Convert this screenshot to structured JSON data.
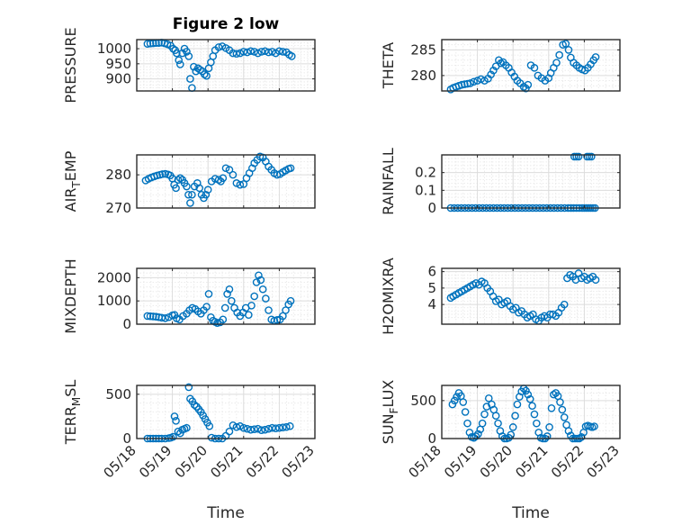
{
  "figure_title": "Figure 2 low",
  "colors": {
    "marker": "#0072bd",
    "axes": "#262626",
    "grid": "#dcdcdc"
  },
  "chart_data": [
    {
      "type": "scatter",
      "title": "Figure 2 low",
      "ylabel": "PRESSURE",
      "ylim": [
        860,
        1030
      ],
      "yticks": [
        900,
        950,
        1000
      ],
      "xlim": [
        0,
        5
      ],
      "xticks": [
        0,
        1,
        2,
        3,
        4,
        5
      ],
      "xticklabels": [
        "05/18",
        "05/19",
        "05/20",
        "05/21",
        "05/22",
        "05/23"
      ],
      "show_x_tick_labels": false,
      "xlabel": "",
      "grid": true,
      "x": [
        0.3,
        0.38,
        0.46,
        0.54,
        0.62,
        0.7,
        0.78,
        0.86,
        0.95,
        1.02,
        1.08,
        1.12,
        1.18,
        1.22,
        1.28,
        1.34,
        1.4,
        1.46,
        1.5,
        1.55,
        1.6,
        1.66,
        1.72,
        1.78,
        1.84,
        1.9,
        1.96,
        2.02,
        2.08,
        2.14,
        2.2,
        2.3,
        2.4,
        2.5,
        2.6,
        2.7,
        2.8,
        2.9,
        3.0,
        3.1,
        3.2,
        3.3,
        3.4,
        3.5,
        3.6,
        3.7,
        3.8,
        3.9,
        4.0,
        4.1,
        4.2,
        4.28,
        4.35
      ],
      "y": [
        1016,
        1017,
        1018,
        1019,
        1019,
        1020,
        1018,
        1015,
        1010,
        1000,
        995,
        985,
        962,
        948,
        985,
        1000,
        990,
        975,
        900,
        870,
        940,
        925,
        935,
        930,
        925,
        915,
        910,
        935,
        955,
        975,
        995,
        1005,
        1008,
        1002,
        995,
        985,
        983,
        985,
        990,
        988,
        992,
        990,
        985,
        990,
        992,
        988,
        990,
        985,
        992,
        990,
        988,
        980,
        975
      ]
    },
    {
      "type": "scatter",
      "ylabel": "THETA",
      "ylim": [
        277,
        287
      ],
      "yticks": [
        280,
        285
      ],
      "xlim": [
        0,
        5
      ],
      "xticks": [
        0,
        1,
        2,
        3,
        4,
        5
      ],
      "xticklabels": [
        "05/18",
        "05/19",
        "05/20",
        "05/21",
        "05/22",
        "05/23"
      ],
      "show_x_tick_labels": false,
      "xlabel": "",
      "grid": true,
      "x": [
        0.25,
        0.32,
        0.4,
        0.48,
        0.56,
        0.64,
        0.72,
        0.8,
        0.9,
        1.0,
        1.1,
        1.2,
        1.3,
        1.38,
        1.45,
        1.52,
        1.6,
        1.66,
        1.72,
        1.8,
        1.88,
        1.96,
        2.04,
        2.12,
        2.2,
        2.3,
        2.36,
        2.42,
        2.5,
        2.6,
        2.7,
        2.8,
        2.9,
        3.0,
        3.06,
        3.14,
        3.22,
        3.3,
        3.4,
        3.48,
        3.56,
        3.62,
        3.7,
        3.78,
        3.86,
        3.94,
        4.02,
        4.1,
        4.18,
        4.26,
        4.32
      ],
      "y": [
        277.3,
        277.6,
        277.8,
        278.0,
        278.2,
        278.3,
        278.4,
        278.5,
        278.8,
        279.0,
        279.3,
        279.0,
        279.4,
        280.2,
        281.0,
        281.8,
        283.0,
        282.4,
        282.6,
        282.0,
        281.5,
        280.6,
        279.8,
        279.0,
        278.5,
        277.8,
        277.5,
        278.2,
        282.0,
        281.5,
        280.0,
        279.5,
        279.0,
        279.5,
        280.5,
        281.5,
        282.5,
        284.0,
        286.0,
        286.2,
        285.0,
        283.5,
        282.5,
        282.0,
        281.5,
        281.2,
        281.0,
        281.5,
        282.2,
        283.0,
        283.6
      ]
    },
    {
      "type": "scatter",
      "ylabel": "AIR_TEMP",
      "ylabel_main": "AIR",
      "ylabel_sub": "T",
      "ylabel_rest": "EMP",
      "ylim": [
        270,
        286
      ],
      "yticks": [
        270,
        280
      ],
      "xlim": [
        0,
        5
      ],
      "xticks": [
        0,
        1,
        2,
        3,
        4,
        5
      ],
      "xticklabels": [
        "05/18",
        "05/19",
        "05/20",
        "05/21",
        "05/22",
        "05/23"
      ],
      "show_x_tick_labels": false,
      "xlabel": "",
      "grid": true,
      "x": [
        0.25,
        0.33,
        0.41,
        0.49,
        0.57,
        0.65,
        0.72,
        0.8,
        0.88,
        0.94,
        1.0,
        1.05,
        1.1,
        1.16,
        1.22,
        1.28,
        1.34,
        1.4,
        1.45,
        1.5,
        1.55,
        1.62,
        1.7,
        1.76,
        1.82,
        1.88,
        1.94,
        2.0,
        2.1,
        2.2,
        2.3,
        2.36,
        2.42,
        2.5,
        2.6,
        2.7,
        2.8,
        2.9,
        3.0,
        3.08,
        3.16,
        3.24,
        3.3,
        3.38,
        3.46,
        3.54,
        3.62,
        3.7,
        3.78,
        3.86,
        3.94,
        4.02,
        4.1,
        4.18,
        4.26,
        4.32
      ],
      "y": [
        278.3,
        278.8,
        279.2,
        279.5,
        279.8,
        280.0,
        280.2,
        280.3,
        280.1,
        279.8,
        278.9,
        277.0,
        276.0,
        278.5,
        279.0,
        278.5,
        277.5,
        276.5,
        274.0,
        271.5,
        274.0,
        276.5,
        277.5,
        276.0,
        274.0,
        273.0,
        274.0,
        275.5,
        278.0,
        278.8,
        278.5,
        278.0,
        279.0,
        282.0,
        281.5,
        280.0,
        277.5,
        277.0,
        277.2,
        279.0,
        280.5,
        282.0,
        283.5,
        284.5,
        285.5,
        285.2,
        284.0,
        282.5,
        281.5,
        280.5,
        280.0,
        280.2,
        280.8,
        281.3,
        281.8,
        282.0
      ]
    },
    {
      "type": "scatter",
      "ylabel": "RAINFALL",
      "ylim": [
        0,
        0.3
      ],
      "yticks": [
        0,
        0.1,
        0.2
      ],
      "yticklabels": [
        "0",
        "0.1",
        "0.2"
      ],
      "xlim": [
        0,
        5
      ],
      "xticks": [
        0,
        1,
        2,
        3,
        4,
        5
      ],
      "xticklabels": [
        "05/18",
        "05/19",
        "05/20",
        "05/21",
        "05/22",
        "05/23"
      ],
      "show_x_tick_labels": false,
      "xlabel": "",
      "grid": true,
      "x": [
        0.25,
        0.35,
        0.45,
        0.55,
        0.65,
        0.75,
        0.85,
        0.95,
        1.05,
        1.15,
        1.25,
        1.35,
        1.45,
        1.55,
        1.65,
        1.75,
        1.85,
        1.95,
        2.05,
        2.15,
        2.25,
        2.35,
        2.45,
        2.55,
        2.65,
        2.75,
        2.85,
        2.95,
        3.05,
        3.15,
        3.25,
        3.35,
        3.45,
        3.55,
        3.62,
        3.7,
        3.78,
        3.86,
        3.94,
        4.0,
        4.06,
        4.12,
        4.18,
        4.24,
        4.3,
        3.72,
        3.78,
        3.84,
        4.08,
        4.14,
        4.2
      ],
      "y": [
        0,
        0,
        0,
        0,
        0,
        0,
        0,
        0,
        0,
        0,
        0,
        0,
        0,
        0,
        0,
        0,
        0,
        0,
        0,
        0,
        0,
        0,
        0,
        0,
        0,
        0,
        0,
        0,
        0,
        0,
        0,
        0,
        0,
        0,
        0,
        0,
        0,
        0,
        0,
        0,
        0,
        0,
        0,
        0,
        0,
        0.29,
        0.29,
        0.29,
        0.29,
        0.29,
        0.29
      ]
    },
    {
      "type": "scatter",
      "ylabel": "MIXDEPTH",
      "ylim": [
        0,
        2400
      ],
      "yticks": [
        0,
        1000,
        2000
      ],
      "xlim": [
        0,
        5
      ],
      "xticks": [
        0,
        1,
        2,
        3,
        4,
        5
      ],
      "xticklabels": [
        "05/18",
        "05/19",
        "05/20",
        "05/21",
        "05/22",
        "05/23"
      ],
      "show_x_tick_labels": false,
      "xlabel": "",
      "grid": true,
      "x": [
        0.3,
        0.38,
        0.46,
        0.54,
        0.62,
        0.7,
        0.8,
        0.9,
        1.0,
        1.06,
        1.12,
        1.2,
        1.3,
        1.4,
        1.48,
        1.56,
        1.64,
        1.72,
        1.8,
        1.88,
        1.96,
        2.02,
        2.08,
        2.14,
        2.2,
        2.26,
        2.34,
        2.42,
        2.48,
        2.54,
        2.6,
        2.66,
        2.74,
        2.82,
        2.9,
        2.98,
        3.06,
        3.14,
        3.22,
        3.3,
        3.36,
        3.42,
        3.48,
        3.54,
        3.62,
        3.7,
        3.78,
        3.86,
        3.94,
        4.02,
        4.1,
        4.18,
        4.26,
        4.32
      ],
      "y": [
        350,
        340,
        330,
        320,
        300,
        280,
        260,
        300,
        380,
        400,
        250,
        200,
        350,
        450,
        600,
        700,
        650,
        550,
        450,
        600,
        750,
        1300,
        300,
        150,
        100,
        50,
        80,
        200,
        700,
        1300,
        1500,
        1000,
        700,
        500,
        350,
        500,
        700,
        400,
        800,
        1200,
        1800,
        2100,
        1900,
        1500,
        1100,
        600,
        200,
        150,
        180,
        200,
        350,
        600,
        850,
        1000
      ]
    },
    {
      "type": "scatter",
      "ylabel": "H2OMIXRA",
      "ylim": [
        2.8,
        6.2
      ],
      "yticks": [
        4,
        5,
        6
      ],
      "xlim": [
        0,
        5
      ],
      "xticks": [
        0,
        1,
        2,
        3,
        4,
        5
      ],
      "xticklabels": [
        "05/18",
        "05/19",
        "05/20",
        "05/21",
        "05/22",
        "05/23"
      ],
      "show_x_tick_labels": false,
      "xlabel": "",
      "grid": true,
      "x": [
        0.25,
        0.32,
        0.4,
        0.48,
        0.56,
        0.64,
        0.72,
        0.8,
        0.88,
        0.96,
        1.04,
        1.12,
        1.2,
        1.28,
        1.36,
        1.44,
        1.52,
        1.6,
        1.68,
        1.76,
        1.84,
        1.92,
        2.0,
        2.08,
        2.16,
        2.24,
        2.32,
        2.4,
        2.48,
        2.56,
        2.64,
        2.72,
        2.8,
        2.88,
        2.96,
        3.04,
        3.12,
        3.2,
        3.28,
        3.36,
        3.44,
        3.52,
        3.6,
        3.68,
        3.76,
        3.84,
        3.92,
        4.0,
        4.08,
        4.16,
        4.24,
        4.32
      ],
      "y": [
        4.4,
        4.5,
        4.6,
        4.7,
        4.8,
        4.9,
        5.0,
        5.1,
        5.2,
        5.3,
        5.2,
        5.4,
        5.3,
        5.0,
        4.8,
        4.5,
        4.2,
        4.3,
        4.0,
        4.1,
        4.2,
        3.9,
        3.7,
        3.8,
        3.5,
        3.6,
        3.4,
        3.2,
        3.3,
        3.4,
        3.1,
        3.0,
        3.2,
        3.3,
        3.2,
        3.4,
        3.4,
        3.3,
        3.5,
        3.8,
        4.0,
        5.6,
        5.8,
        5.7,
        5.5,
        5.9,
        5.6,
        5.7,
        5.5,
        5.6,
        5.7,
        5.5
      ]
    },
    {
      "type": "scatter",
      "ylabel": "TERR_MSL",
      "ylabel_main": "TERR",
      "ylabel_sub": "M",
      "ylabel_rest": "SL",
      "ylim": [
        0,
        600
      ],
      "yticks": [
        0,
        500
      ],
      "xlim": [
        0,
        5
      ],
      "xticks": [
        0,
        1,
        2,
        3,
        4,
        5
      ],
      "xticklabels": [
        "05/18",
        "05/19",
        "05/20",
        "05/21",
        "05/22",
        "05/23"
      ],
      "show_x_tick_labels": true,
      "xlabel": "Time",
      "grid": true,
      "x": [
        0.3,
        0.38,
        0.46,
        0.54,
        0.62,
        0.7,
        0.8,
        0.9,
        0.96,
        1.02,
        1.06,
        1.1,
        1.16,
        1.22,
        1.28,
        1.34,
        1.4,
        1.46,
        1.5,
        1.56,
        1.62,
        1.68,
        1.74,
        1.8,
        1.86,
        1.92,
        1.98,
        2.04,
        2.1,
        2.2,
        2.3,
        2.4,
        2.5,
        2.6,
        2.7,
        2.8,
        2.9,
        3.0,
        3.1,
        3.2,
        3.3,
        3.4,
        3.5,
        3.6,
        3.7,
        3.8,
        3.9,
        4.0,
        4.1,
        4.2,
        4.3
      ],
      "y": [
        0,
        0,
        0,
        0,
        0,
        0,
        0,
        5,
        10,
        20,
        250,
        200,
        80,
        60,
        100,
        110,
        120,
        580,
        450,
        420,
        380,
        360,
        330,
        300,
        260,
        220,
        180,
        140,
        10,
        0,
        0,
        0,
        30,
        80,
        150,
        130,
        140,
        120,
        110,
        100,
        105,
        110,
        95,
        100,
        110,
        120,
        115,
        120,
        125,
        130,
        140
      ]
    },
    {
      "type": "scatter",
      "ylabel": "SUN_FLUX",
      "ylabel_main": "SUN",
      "ylabel_sub": "F",
      "ylabel_rest": "LUX",
      "ylim": [
        0,
        700
      ],
      "yticks": [
        0,
        500
      ],
      "xlim": [
        0,
        5
      ],
      "xticks": [
        0,
        1,
        2,
        3,
        4,
        5
      ],
      "xticklabels": [
        "05/18",
        "05/19",
        "05/20",
        "05/21",
        "05/22",
        "05/23"
      ],
      "show_x_tick_labels": true,
      "xlabel": "Time",
      "grid": true,
      "x": [
        0.3,
        0.36,
        0.42,
        0.48,
        0.54,
        0.6,
        0.66,
        0.72,
        0.78,
        0.84,
        0.9,
        0.96,
        1.02,
        1.08,
        1.14,
        1.2,
        1.26,
        1.32,
        1.4,
        1.46,
        1.52,
        1.58,
        1.64,
        1.7,
        1.76,
        1.82,
        1.88,
        1.94,
        2.0,
        2.06,
        2.12,
        2.18,
        2.24,
        2.3,
        2.36,
        2.42,
        2.48,
        2.54,
        2.6,
        2.66,
        2.72,
        2.78,
        2.84,
        2.9,
        2.96,
        3.02,
        3.08,
        3.14,
        3.2,
        3.26,
        3.32,
        3.38,
        3.44,
        3.5,
        3.56,
        3.62,
        3.68,
        3.74,
        3.8,
        3.86,
        3.92,
        3.98,
        4.04,
        4.1,
        4.16,
        4.22,
        4.28
      ],
      "y": [
        450,
        500,
        550,
        600,
        560,
        480,
        350,
        200,
        80,
        20,
        10,
        30,
        60,
        120,
        200,
        320,
        420,
        530,
        450,
        380,
        300,
        200,
        100,
        30,
        0,
        0,
        10,
        50,
        150,
        300,
        450,
        550,
        620,
        660,
        630,
        580,
        520,
        430,
        320,
        200,
        80,
        10,
        0,
        0,
        30,
        150,
        400,
        580,
        600,
        560,
        480,
        380,
        280,
        180,
        100,
        40,
        0,
        0,
        0,
        0,
        20,
        80,
        160,
        170,
        160,
        150,
        160
      ]
    }
  ]
}
